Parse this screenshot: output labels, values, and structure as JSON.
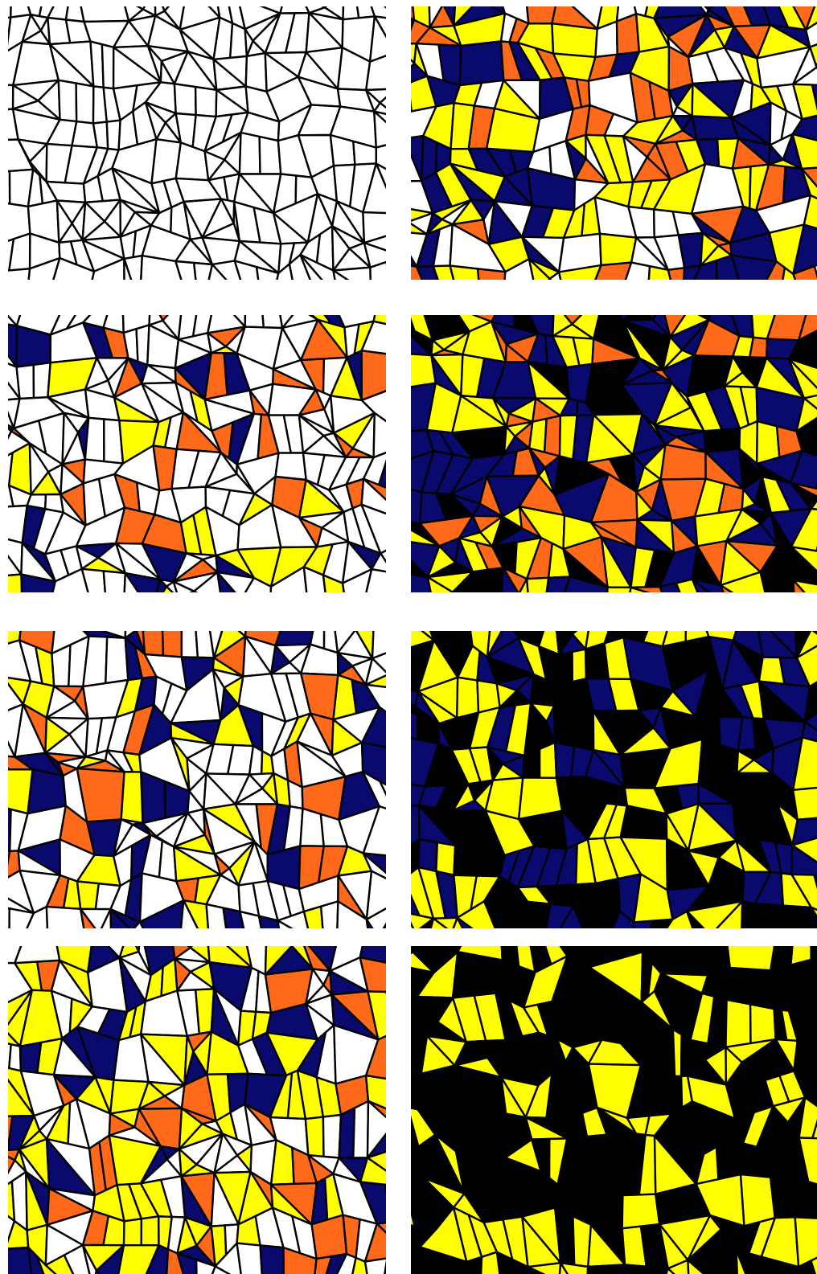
{
  "panels": [
    {
      "colors": [
        "#ffffff"
      ]
    },
    {
      "colors": [
        "#ffffff",
        "#0a0a6e",
        "#ffff00",
        "#ff6a1a",
        "#ffffff",
        "#0a0a6e",
        "#ffff00"
      ]
    },
    {
      "colors": [
        "#ffffff",
        "#ffffff",
        "#ffffff",
        "#ffffff",
        "#ffffff",
        "#ffffff",
        "#ffff00",
        "#ff6a1a",
        "#0a0a6e"
      ]
    },
    {
      "colors": [
        "#000000",
        "#0a0a6e",
        "#ffff00",
        "#ff6a1a",
        "#ffff00",
        "#0a0a6e"
      ]
    },
    {
      "colors": [
        "#ffffff",
        "#ffffff",
        "#ffffff",
        "#ffffff",
        "#0a0a6e",
        "#ffff00",
        "#ff6a1a"
      ]
    },
    {
      "colors": [
        "#000000",
        "#000000",
        "#0a0a6e",
        "#ffff00",
        "#ffff00",
        "#0a0a6e"
      ]
    },
    {
      "colors": [
        "#ffffff",
        "#ffffff",
        "#0a0a6e",
        "#ffff00",
        "#ff6a1a",
        "#ffff00"
      ]
    },
    {
      "colors": [
        "#000000",
        "#000000",
        "#000000",
        "#ffff00",
        "#ffff00"
      ]
    }
  ]
}
